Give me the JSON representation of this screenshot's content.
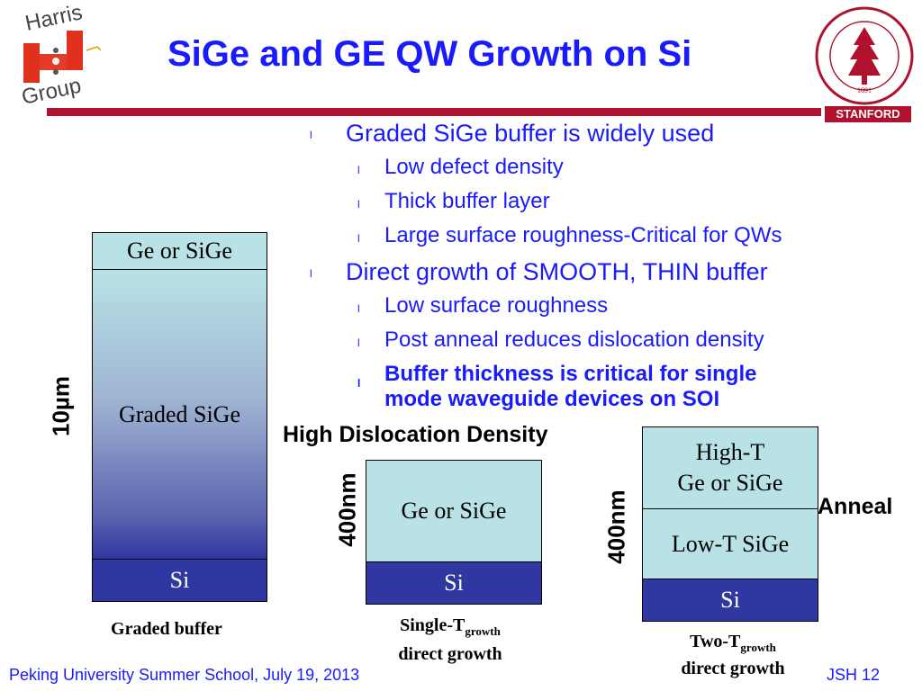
{
  "header": {
    "logo_text": [
      "Harris",
      "Group"
    ],
    "title": "SiGe and GE QW Growth on Si",
    "affiliation_label": "STANFORD",
    "seal_text": "LELAND STANFORD JUNIOR UNIVERSITY",
    "seal_year": "1891"
  },
  "bullets": [
    {
      "level": 1,
      "text": "Graded SiGe buffer is widely used",
      "marker": "l"
    },
    {
      "level": 2,
      "text": "Low defect density",
      "marker": "l"
    },
    {
      "level": 2,
      "text": "Thick buffer layer",
      "marker": "l"
    },
    {
      "level": 2,
      "text": "Large surface roughness-Critical for QWs",
      "marker": "l"
    },
    {
      "level": 1,
      "text": "Direct growth of SMOOTH, THIN buffer",
      "marker": "l"
    },
    {
      "level": 2,
      "text": "Low surface roughness",
      "marker": "l"
    },
    {
      "level": 2,
      "text": "Post anneal reduces dislocation density",
      "marker": "l"
    },
    {
      "level": 2,
      "text": "Buffer thickness is critical for single",
      "text2": "mode waveguide devices on SOI",
      "bold": true,
      "marker": "l"
    }
  ],
  "diagram": {
    "graded_buffer": {
      "thickness_label": "10µm",
      "layers": [
        "Ge or SiGe",
        "Graded SiGe",
        "Si"
      ],
      "caption": "Graded buffer"
    },
    "single_t": {
      "thickness_label": "400nm",
      "layers": [
        "Ge or SiGe",
        "Si"
      ],
      "annotation": "High Dislocation Density",
      "caption_main": "Single-T",
      "caption_sub": "growth",
      "caption_line2": "direct growth"
    },
    "two_t": {
      "thickness_label": "400nm",
      "layers": [
        "High-T",
        "Ge or SiGe",
        "Low-T SiGe",
        "Si"
      ],
      "annotation": "Anneal",
      "caption_main": "Two-T",
      "caption_sub": "growth",
      "caption_line2": "direct growth"
    }
  },
  "footer": {
    "left": "Peking University Summer School, July 19, 2013",
    "right": "JSH 12"
  },
  "colors": {
    "title_blue": "#1a1aff",
    "stanford_red": "#b0122d",
    "layer_cyan": "#b8e2e6",
    "layer_si": "#2f37a0"
  }
}
